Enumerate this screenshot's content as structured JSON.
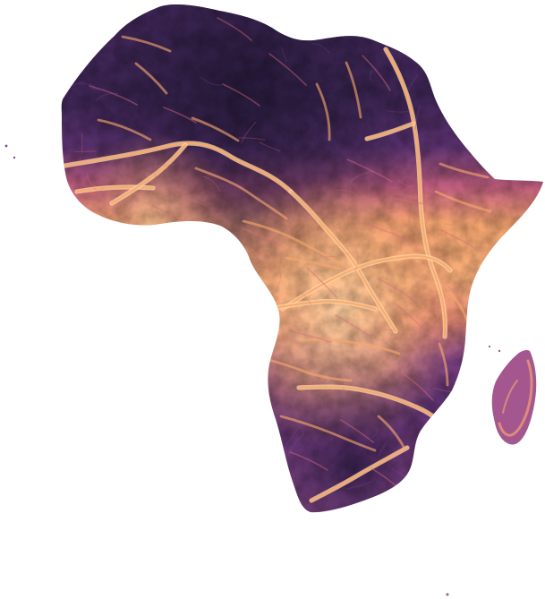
{
  "map": {
    "palette": {
      "low": "#2d1e44",
      "mid_low": "#57316c",
      "mid": "#8d4b90",
      "mid_high": "#d66b7d",
      "high": "#f7a86e",
      "highest": "#ffd2a0"
    }
  }
}
